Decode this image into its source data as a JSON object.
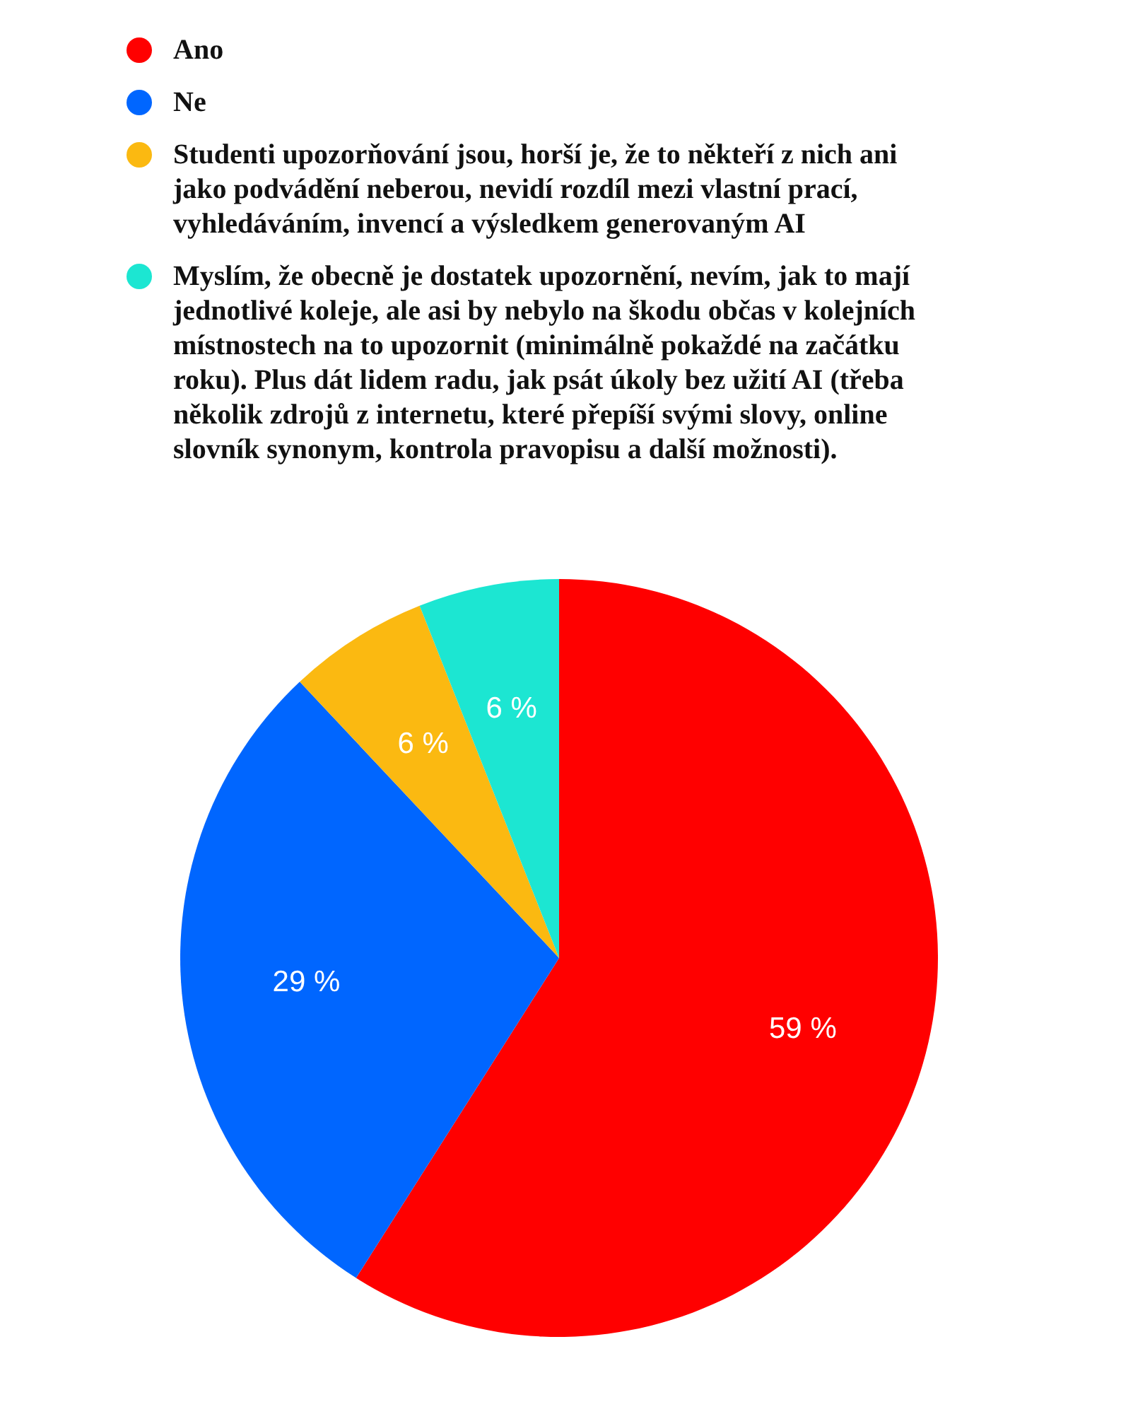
{
  "chart_data": {
    "type": "pie",
    "categories": [
      "Ano",
      "Ne",
      "Studenti upozorňování jsou, horší je, že to někteří z nich ani jako podvádění neberou, nevidí rozdíl mezi vlastní prací, vyhledáváním, invencí a výsledkem generovaným AI",
      "Myslím, že obecně je dostatek upozornění, nevím, jak to mají jednotlivé koleje, ale asi by nebylo na škodu občas v kolejních místnostech na to upozornit (minimálně pokaždé na začátku roku). Plus dát lidem radu, jak psát úkoly bez užití AI (třeba několik zdrojů z internetu, které přepíší svými slovy, online slovník synonym, kontrola pravopisu a další možnosti)."
    ],
    "values": [
      59,
      29,
      6,
      6
    ],
    "colors": [
      "#ff0000",
      "#0066ff",
      "#fbb911",
      "#1ce6d2"
    ],
    "value_labels": [
      "59 %",
      "29 %",
      "6 %",
      "6 %"
    ],
    "legend": "top"
  }
}
